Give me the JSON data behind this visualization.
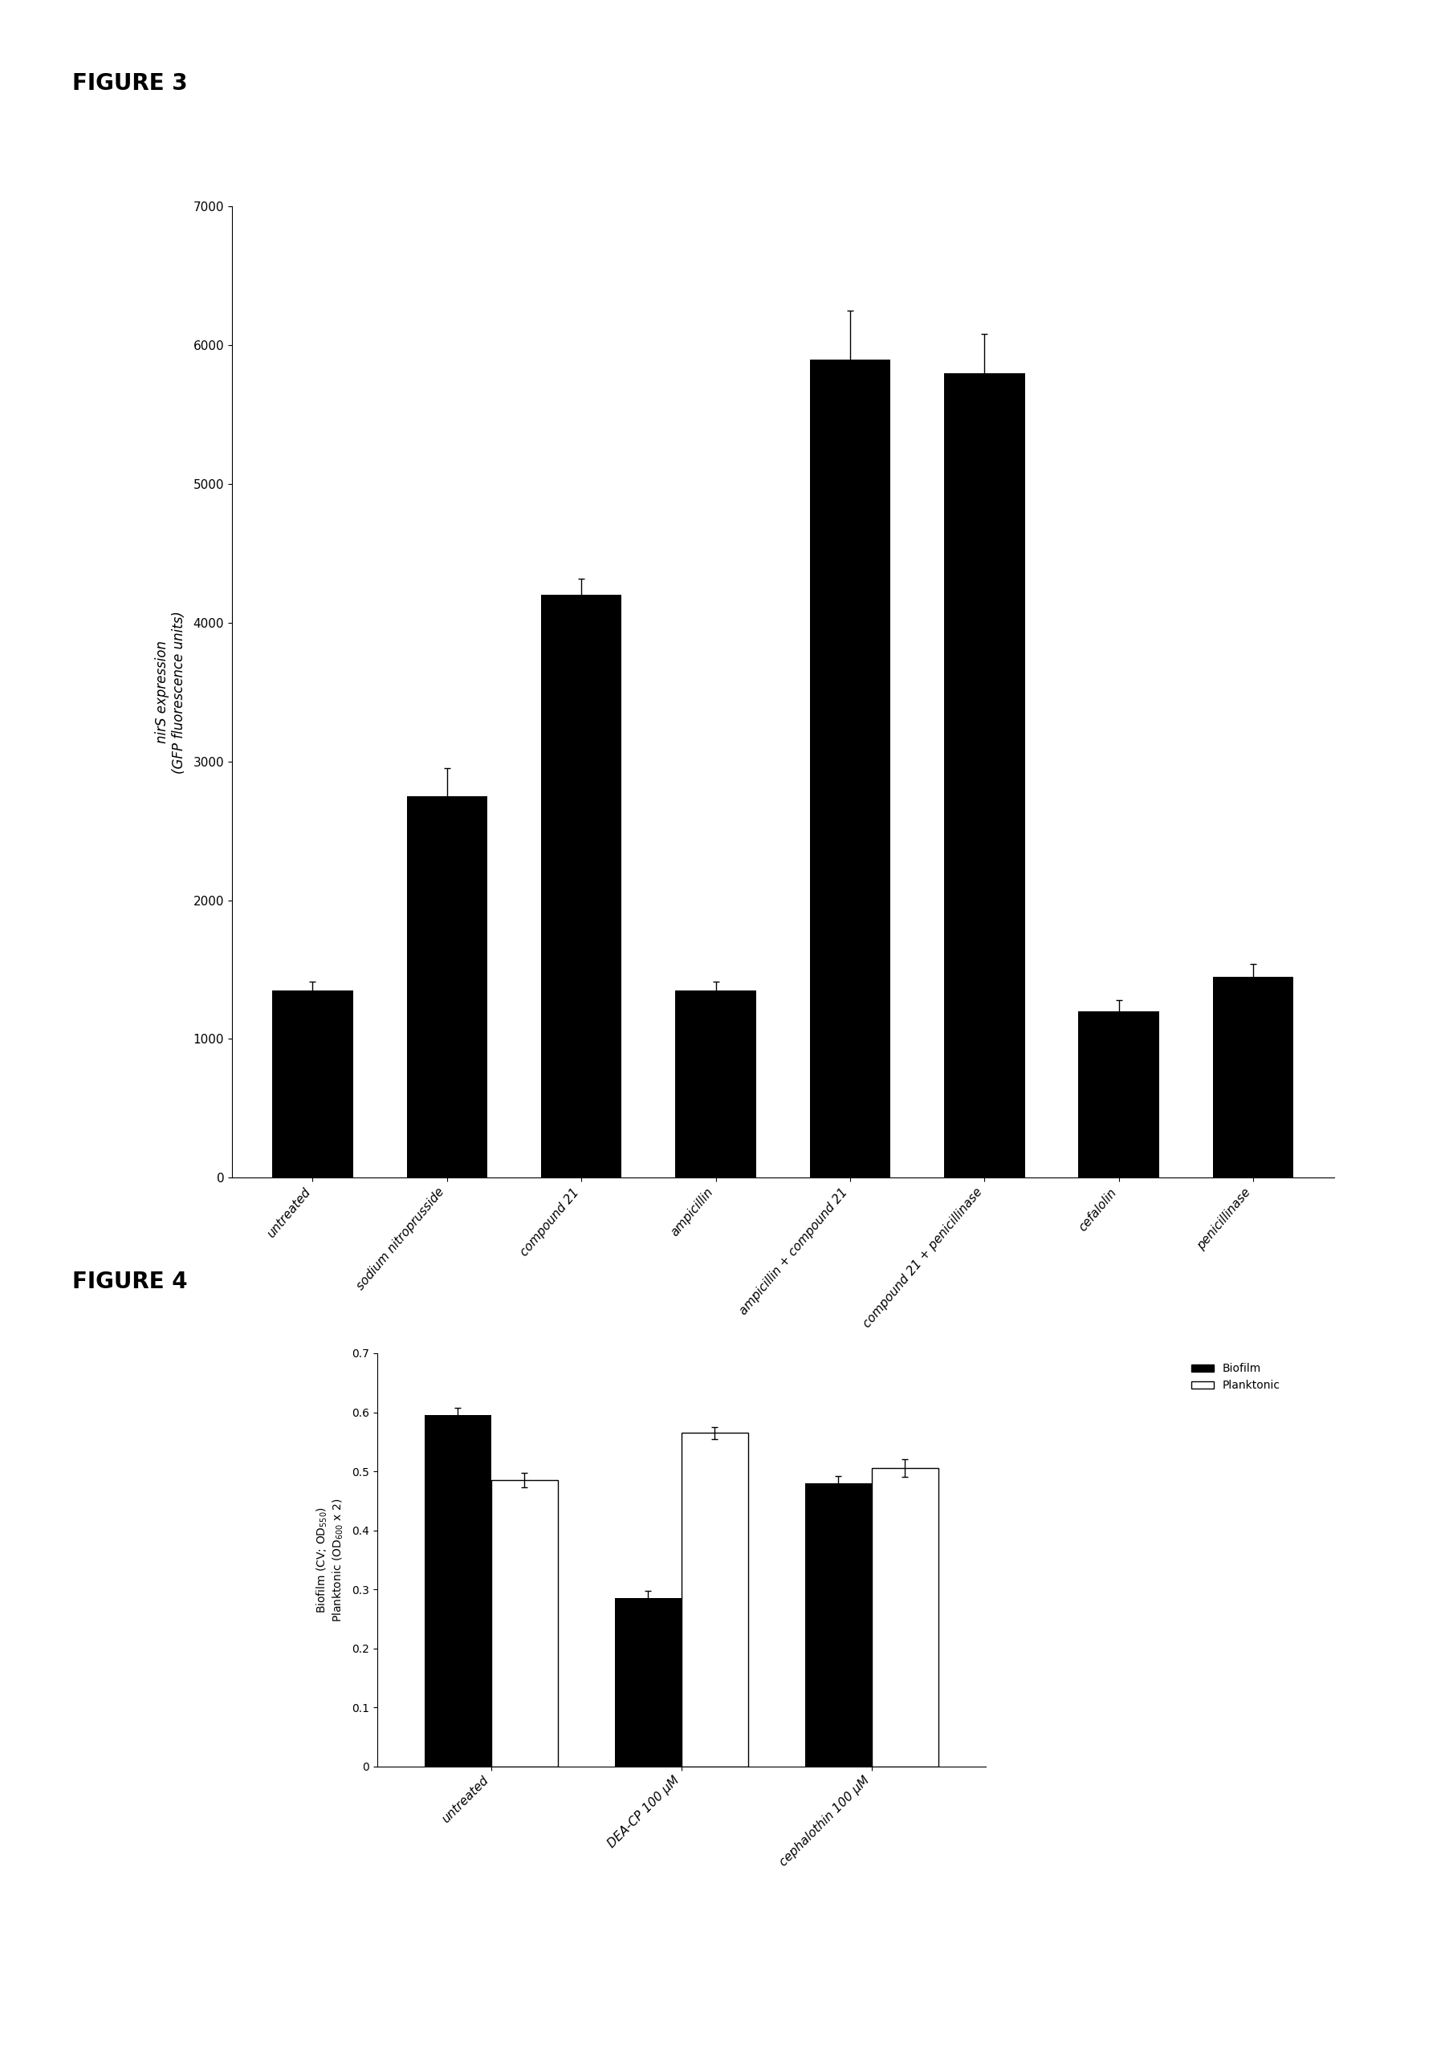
{
  "fig3": {
    "ylabel_line1": "nirS expression",
    "ylabel_line2": "(GFP fluorescence units)",
    "categories": [
      "untreated",
      "sodium nitroprusside",
      "compound 21",
      "ampicillin",
      "ampicillin + compound 21",
      "compound 21 + penicillinase",
      "cefalolin",
      "penicillinase"
    ],
    "values": [
      1350,
      2750,
      4200,
      1350,
      5900,
      5800,
      1200,
      1450
    ],
    "errors": [
      60,
      200,
      120,
      60,
      350,
      280,
      80,
      90
    ],
    "bar_color": "#000000",
    "ylim": [
      0,
      7000
    ],
    "yticks": [
      0,
      1000,
      2000,
      3000,
      4000,
      5000,
      6000,
      7000
    ]
  },
  "fig4": {
    "ylabel_line1": "Biofilm (CV; OD",
    "ylabel_line2": "Planktonic (OD",
    "categories": [
      "untreated",
      "DEA-CP 100 μM",
      "cephalothin 100 μM"
    ],
    "biofilm_values": [
      0.595,
      0.285,
      0.48
    ],
    "planktonic_values": [
      0.485,
      0.565,
      0.505
    ],
    "biofilm_errors": [
      0.012,
      0.012,
      0.012
    ],
    "planktonic_errors": [
      0.012,
      0.01,
      0.015
    ],
    "biofilm_color": "#000000",
    "planktonic_color": "#ffffff",
    "ylim": [
      0,
      0.7
    ],
    "yticks": [
      0,
      0.1,
      0.2,
      0.3,
      0.4,
      0.5,
      0.6,
      0.7
    ],
    "legend_biofilm": "Biofilm",
    "legend_planktonic": "Planktonic"
  },
  "fig3_label": "FIGURE 3",
  "fig4_label": "FIGURE 4",
  "background_color": "#ffffff",
  "fig_width": 18.06,
  "fig_height": 25.74
}
